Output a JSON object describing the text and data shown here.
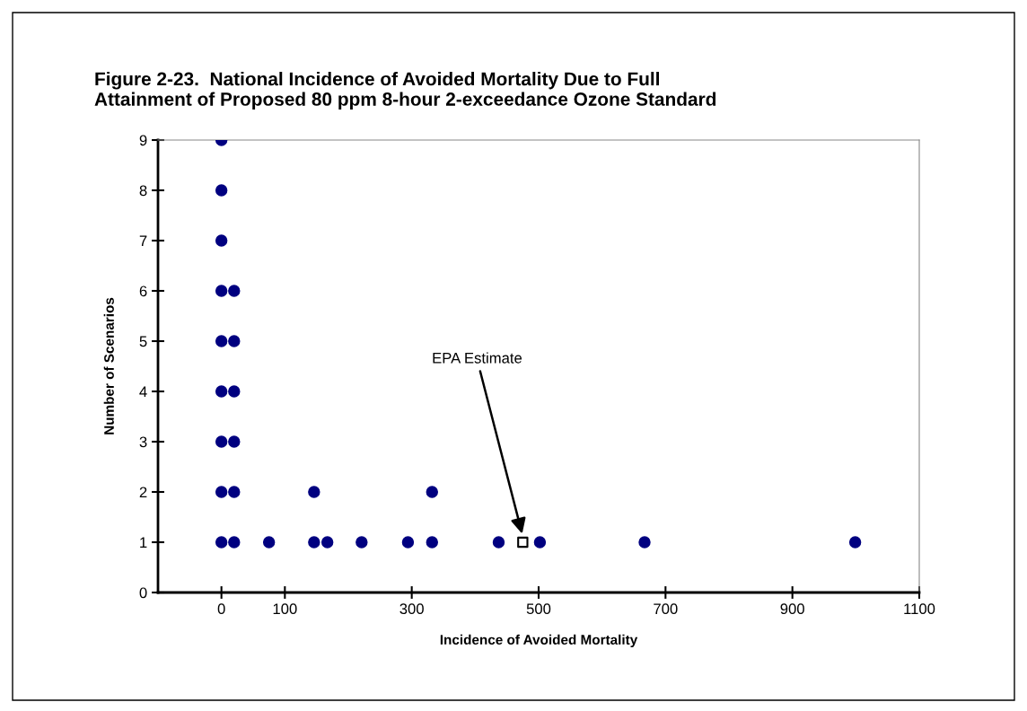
{
  "chart_data": {
    "type": "scatter",
    "title": "Figure 2-23.  National Incidence of Avoided Mortality Due to Full\nAttainment of Proposed 80 ppm 8-hour 2-exceedance Ozone Standard",
    "xlabel": "Incidence of Avoided Mortality",
    "ylabel": "Number of Scenarios",
    "series": [
      {
        "color": "#000080",
        "marker": "circle",
        "x": [
          0,
          0,
          0,
          0,
          0,
          0,
          0,
          0,
          0,
          20,
          20,
          20,
          20,
          20,
          20,
          75,
          146,
          146,
          167,
          221,
          294,
          332,
          332,
          437,
          502,
          667,
          999
        ],
        "values": [
          1,
          2,
          3,
          4,
          5,
          6,
          7,
          8,
          9,
          1,
          2,
          3,
          4,
          5,
          6,
          1,
          1,
          2,
          1,
          1,
          1,
          1,
          2,
          1,
          1,
          1,
          1
        ]
      },
      {
        "color": "#000000",
        "marker": "square",
        "x": [
          475
        ],
        "values": [
          1
        ]
      }
    ],
    "annotations": [
      "EPA Estimate"
    ],
    "xlim": [
      -100,
      1100
    ],
    "xticks": [
      0,
      100,
      300,
      500,
      700,
      900,
      1100
    ],
    "ylim": [
      0,
      9
    ],
    "yticks": [
      0,
      1,
      2,
      3,
      4,
      5,
      6,
      7,
      8,
      9
    ],
    "grid": false,
    "legend": false
  }
}
